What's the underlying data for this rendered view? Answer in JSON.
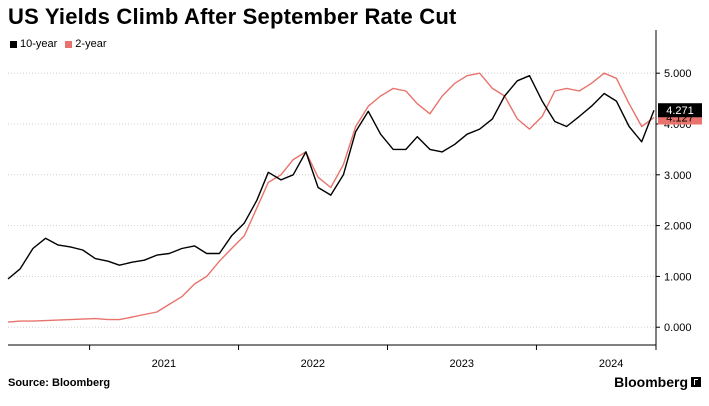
{
  "title": "US Yields Climb After September Rate Cut",
  "source": "Source: Bloomberg",
  "brand": "Bloomberg",
  "colors": {
    "s10": "#000000",
    "s2": "#e8736c",
    "grid": "#cfcfcf",
    "axis": "#000000"
  },
  "chart_data": {
    "type": "line",
    "title": "US Yields Climb After September Rate Cut",
    "xlabel": "",
    "ylabel": "",
    "x_ticks": [
      "2021",
      "2022",
      "2023",
      "2024"
    ],
    "y_ticks": [
      "0.000",
      "1.000",
      "2.000",
      "3.000",
      "4.000",
      "5.000"
    ],
    "ylim": [
      -0.35,
      5.85
    ],
    "xlim": [
      "2020-06-15",
      "2024-10-20"
    ],
    "grid": "horizontal dotted",
    "legend": "top-left",
    "last_value_labels": {
      "s10": "4.271",
      "s2": "4.127"
    },
    "series": [
      {
        "name": "10-year",
        "color": "#000000",
        "x": [
          "2020-06-15",
          "2020-07-15",
          "2020-08-15",
          "2020-09-15",
          "2020-10-15",
          "2020-11-15",
          "2020-12-15",
          "2021-01-15",
          "2021-02-15",
          "2021-03-15",
          "2021-04-15",
          "2021-05-15",
          "2021-06-15",
          "2021-07-15",
          "2021-08-15",
          "2021-09-15",
          "2021-10-15",
          "2021-11-15",
          "2021-12-15",
          "2022-01-15",
          "2022-02-15",
          "2022-03-15",
          "2022-04-15",
          "2022-05-15",
          "2022-06-15",
          "2022-07-15",
          "2022-08-15",
          "2022-09-15",
          "2022-10-15",
          "2022-11-15",
          "2022-12-15",
          "2023-01-15",
          "2023-02-15",
          "2023-03-15",
          "2023-04-15",
          "2023-05-15",
          "2023-06-15",
          "2023-07-15",
          "2023-08-15",
          "2023-09-15",
          "2023-10-15",
          "2023-11-15",
          "2023-12-15",
          "2024-01-15",
          "2024-02-15",
          "2024-03-15",
          "2024-04-15",
          "2024-05-15",
          "2024-06-15",
          "2024-07-15",
          "2024-08-15",
          "2024-09-15",
          "2024-10-15"
        ],
        "values": [
          0.95,
          1.15,
          1.55,
          1.75,
          1.62,
          1.58,
          1.52,
          1.35,
          1.3,
          1.22,
          1.28,
          1.32,
          1.42,
          1.45,
          1.55,
          1.6,
          1.45,
          1.45,
          1.8,
          2.05,
          2.5,
          3.05,
          2.9,
          3.0,
          3.45,
          2.75,
          2.6,
          3.0,
          3.85,
          4.25,
          3.8,
          3.5,
          3.5,
          3.75,
          3.5,
          3.45,
          3.6,
          3.8,
          3.9,
          4.1,
          4.55,
          4.85,
          4.95,
          4.45,
          4.05,
          3.95,
          4.15,
          4.35,
          4.6,
          4.45,
          3.95,
          3.65,
          4.271
        ]
      },
      {
        "name": "2-year",
        "color": "#e8736c",
        "x": [
          "2020-06-15",
          "2020-07-15",
          "2020-08-15",
          "2020-09-15",
          "2020-10-15",
          "2020-11-15",
          "2020-12-15",
          "2021-01-15",
          "2021-02-15",
          "2021-03-15",
          "2021-04-15",
          "2021-05-15",
          "2021-06-15",
          "2021-07-15",
          "2021-08-15",
          "2021-09-15",
          "2021-10-15",
          "2021-11-15",
          "2021-12-15",
          "2022-01-15",
          "2022-02-15",
          "2022-03-15",
          "2022-04-15",
          "2022-05-15",
          "2022-06-15",
          "2022-07-15",
          "2022-08-15",
          "2022-09-15",
          "2022-10-15",
          "2022-11-15",
          "2022-12-15",
          "2023-01-15",
          "2023-02-15",
          "2023-03-15",
          "2023-04-15",
          "2023-05-15",
          "2023-06-15",
          "2023-07-15",
          "2023-08-15",
          "2023-09-15",
          "2023-10-15",
          "2023-11-15",
          "2023-12-15",
          "2024-01-15",
          "2024-02-15",
          "2024-03-15",
          "2024-04-15",
          "2024-05-15",
          "2024-06-15",
          "2024-07-15",
          "2024-08-15",
          "2024-09-15",
          "2024-10-15"
        ],
        "values": [
          0.1,
          0.12,
          0.12,
          0.13,
          0.14,
          0.15,
          0.16,
          0.17,
          0.15,
          0.15,
          0.2,
          0.25,
          0.3,
          0.45,
          0.6,
          0.85,
          1.0,
          1.3,
          1.55,
          1.8,
          2.35,
          2.85,
          3.0,
          3.3,
          3.45,
          2.95,
          2.75,
          3.2,
          3.95,
          4.35,
          4.55,
          4.7,
          4.65,
          4.4,
          4.2,
          4.55,
          4.8,
          4.95,
          5.0,
          4.7,
          4.55,
          4.1,
          3.9,
          4.15,
          4.65,
          4.7,
          4.65,
          4.8,
          5.0,
          4.9,
          4.4,
          3.95,
          4.127
        ]
      }
    ]
  }
}
